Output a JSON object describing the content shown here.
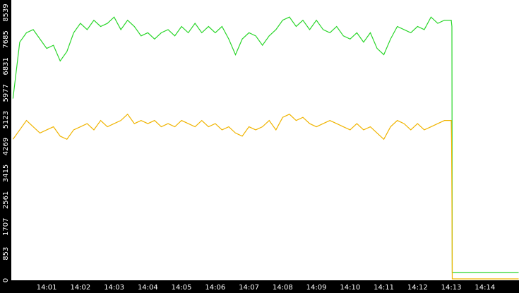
{
  "chart_data": {
    "type": "line",
    "x": [
      840.0,
      840.2,
      840.4,
      840.6,
      840.8,
      841.0,
      841.2,
      841.4,
      841.6,
      841.8,
      842.0,
      842.2,
      842.4,
      842.6,
      842.8,
      843.0,
      843.2,
      843.4,
      843.6,
      843.8,
      844.0,
      844.2,
      844.4,
      844.6,
      844.8,
      845.0,
      845.2,
      845.4,
      845.6,
      845.8,
      846.0,
      846.2,
      846.4,
      846.6,
      846.8,
      847.0,
      847.2,
      847.4,
      847.6,
      847.8,
      848.0,
      848.2,
      848.4,
      848.6,
      848.8,
      849.0,
      849.2,
      849.4,
      849.6,
      849.8,
      850.0,
      850.2,
      850.4,
      850.6,
      850.8,
      851.0,
      851.2,
      851.4,
      851.6,
      851.8,
      852.0,
      852.2,
      852.4,
      852.6,
      852.8,
      853.0,
      853.01,
      853.02,
      853.03,
      855.0
    ],
    "series": [
      {
        "color": "#2ad62a",
        "values": [
          5800,
          7600,
          7900,
          8000,
          7700,
          7400,
          7500,
          7000,
          7300,
          7900,
          8200,
          8000,
          8300,
          8100,
          8200,
          8400,
          8000,
          8300,
          8100,
          7800,
          7900,
          7700,
          7900,
          8000,
          7800,
          8100,
          7900,
          8200,
          7900,
          8100,
          7900,
          8100,
          7700,
          7200,
          7700,
          7900,
          7800,
          7500,
          7800,
          8000,
          8300,
          8400,
          8100,
          8300,
          8000,
          8300,
          8000,
          7900,
          8100,
          7800,
          7700,
          7900,
          7600,
          7900,
          7400,
          7200,
          7700,
          8100,
          8000,
          7900,
          8100,
          8000,
          8400,
          8200,
          8300,
          8300,
          8200,
          8100,
          250,
          250
        ]
      },
      {
        "color": "#f0b400",
        "values": [
          4500,
          4800,
          5100,
          4900,
          4700,
          4800,
          4900,
          4600,
          4500,
          4800,
          4900,
          5000,
          4800,
          5100,
          4900,
          5000,
          5100,
          5300,
          5000,
          5100,
          5000,
          5100,
          4900,
          5000,
          4900,
          5100,
          5000,
          4900,
          5100,
          4900,
          5000,
          4800,
          4900,
          4700,
          4600,
          4900,
          4800,
          4900,
          5100,
          4800,
          5200,
          5300,
          5100,
          5200,
          5000,
          4900,
          5000,
          5100,
          5000,
          4900,
          4800,
          5000,
          4800,
          4900,
          4700,
          4500,
          4900,
          5100,
          5000,
          4800,
          5000,
          4800,
          4900,
          5000,
          5100,
          5100,
          4400,
          2600,
          45,
          45
        ]
      }
    ],
    "xlim": [
      839.95,
      855.01
    ],
    "xticks": [
      {
        "value": 841,
        "label": "14:01"
      },
      {
        "value": 842,
        "label": "14:02"
      },
      {
        "value": 843,
        "label": "14:03"
      },
      {
        "value": 844,
        "label": "14:04"
      },
      {
        "value": 845,
        "label": "14:05"
      },
      {
        "value": 846,
        "label": "14:06"
      },
      {
        "value": 847,
        "label": "14:07"
      },
      {
        "value": 848,
        "label": "14:08"
      },
      {
        "value": 849,
        "label": "14:09"
      },
      {
        "value": 850,
        "label": "14:10"
      },
      {
        "value": 851,
        "label": "14:11"
      },
      {
        "value": 852,
        "label": "14:12"
      },
      {
        "value": 853,
        "label": "14:13"
      },
      {
        "value": 854,
        "label": "14:14"
      }
    ],
    "ylim": [
      0,
      8945
    ],
    "yticks": [
      0,
      853,
      1707,
      2561,
      3415,
      4269,
      5123,
      5977,
      6831,
      7685,
      8539
    ]
  }
}
